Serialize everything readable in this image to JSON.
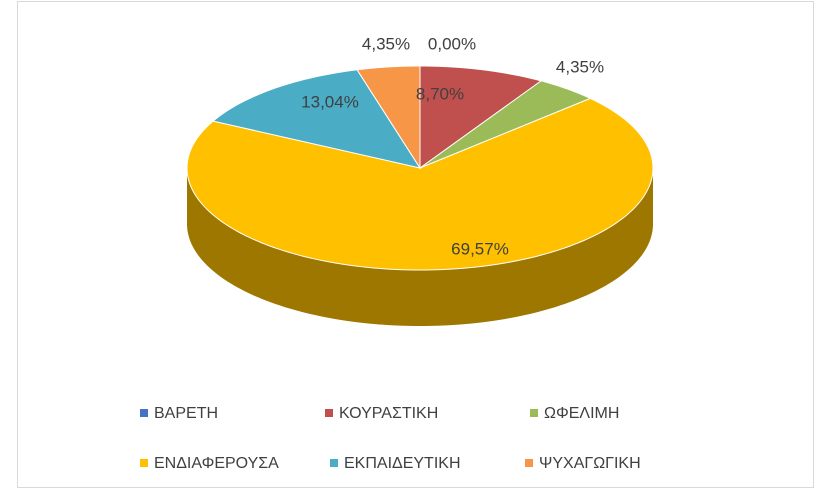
{
  "chart_data": {
    "type": "pie",
    "style": "3d",
    "categories": [
      "ΒΑΡΕΤΗ",
      "ΚΟΥΡΑΣΤΙΚΗ",
      "ΩΦΕΛΙΜΗ",
      "ΕΝΔΙΑΦΕΡΟΥΣΑ",
      "ΕΚΠΑΙΔΕΥΤΙΚΗ",
      "ΨΥΧΑΓΩΓΙΚΗ"
    ],
    "values": [
      0,
      8.7,
      4.35,
      69.57,
      13.04,
      4.35
    ],
    "value_labels": [
      "0,00%",
      "8,70%",
      "4,35%",
      "69,57%",
      "13,04%",
      "4,35%"
    ],
    "colors": [
      "#4472c4",
      "#c0504d",
      "#9bbb59",
      "#ffc000",
      "#4bacc6",
      "#f79646"
    ],
    "legend": "bottom"
  }
}
